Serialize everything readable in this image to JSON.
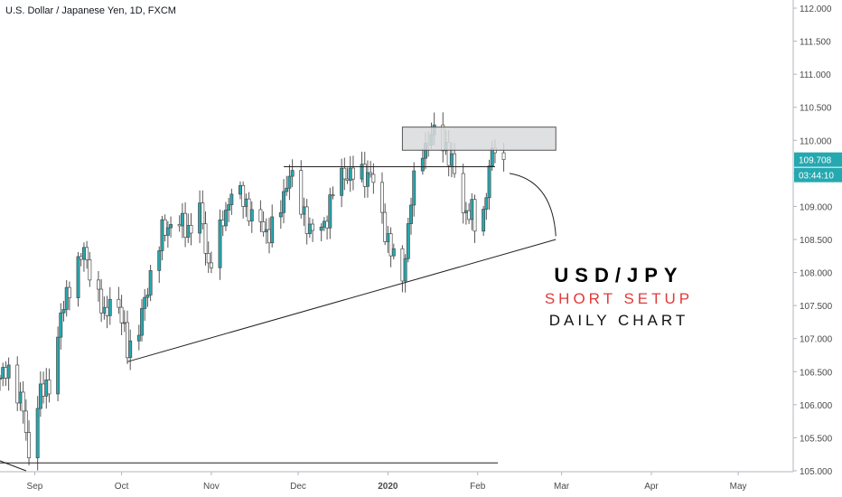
{
  "chart_title": "U.S. Dollar / Japanese Yen, 1D, FXCM",
  "overlay": {
    "pair": "USD/JPY",
    "setup": "SHORT SETUP",
    "timeframe": "DAILY CHART"
  },
  "last_price_label": "109.708",
  "countdown_label": "03:44:10",
  "colors": {
    "up": "#26a8b0",
    "down": "#ffffff",
    "wick": "#555555",
    "price_tag": "#26a8b0",
    "zone_fill": "#d9dadd",
    "short_text": "#e03a3a"
  },
  "chart_data": {
    "type": "candlestick",
    "title": "U.S. Dollar / Japanese Yen, 1D, FXCM",
    "y_axis": {
      "min": 105.0,
      "max": 112.0,
      "ticks": [
        "112.000",
        "111.500",
        "111.000",
        "110.500",
        "110.000",
        "109.500",
        "109.000",
        "108.500",
        "108.000",
        "107.500",
        "107.000",
        "106.500",
        "106.000",
        "105.500",
        "105.000"
      ]
    },
    "x_axis": {
      "start": "2019-08-20",
      "end": "2020-05-20",
      "ticks": [
        {
          "label": "Sep",
          "date": "2019-09-01"
        },
        {
          "label": "Oct",
          "date": "2019-10-01"
        },
        {
          "label": "Nov",
          "date": "2019-11-01"
        },
        {
          "label": "Dec",
          "date": "2019-12-01"
        },
        {
          "label": "2020",
          "date": "2020-01-01"
        },
        {
          "label": "Feb",
          "date": "2020-02-01"
        },
        {
          "label": "Mar",
          "date": "2020-03-01"
        },
        {
          "label": "Apr",
          "date": "2020-04-01"
        },
        {
          "label": "May",
          "date": "2020-05-01"
        }
      ]
    },
    "last_price": 109.708,
    "control_points": [
      [
        "2019-08-20",
        106.4
      ],
      [
        "2019-08-24",
        106.55
      ],
      [
        "2019-08-28",
        105.9
      ],
      [
        "2019-08-30",
        105.2
      ],
      [
        "2019-09-02",
        106.1
      ],
      [
        "2019-09-06",
        106.3
      ],
      [
        "2019-09-10",
        107.3
      ],
      [
        "2019-09-14",
        108.0
      ],
      [
        "2019-09-18",
        108.3
      ],
      [
        "2019-09-22",
        107.8
      ],
      [
        "2019-09-25",
        107.3
      ],
      [
        "2019-09-28",
        107.8
      ],
      [
        "2019-10-03",
        106.9
      ],
      [
        "2019-10-06",
        106.9
      ],
      [
        "2019-10-10",
        107.8
      ],
      [
        "2019-10-15",
        108.6
      ],
      [
        "2019-10-19",
        108.8
      ],
      [
        "2019-10-24",
        108.65
      ],
      [
        "2019-10-28",
        108.95
      ],
      [
        "2019-10-31",
        108.1
      ],
      [
        "2019-11-04",
        108.6
      ],
      [
        "2019-11-08",
        109.25
      ],
      [
        "2019-11-12",
        109.1
      ],
      [
        "2019-11-16",
        108.8
      ],
      [
        "2019-11-20",
        108.6
      ],
      [
        "2019-11-24",
        108.75
      ],
      [
        "2019-11-28",
        109.55
      ],
      [
        "2019-12-02",
        108.95
      ],
      [
        "2019-12-06",
        108.6
      ],
      [
        "2019-12-10",
        108.7
      ],
      [
        "2019-12-14",
        109.4
      ],
      [
        "2019-12-18",
        109.5
      ],
      [
        "2019-12-22",
        109.45
      ],
      [
        "2019-12-26",
        109.5
      ],
      [
        "2019-12-30",
        108.8
      ],
      [
        "2020-01-03",
        108.2
      ],
      [
        "2020-01-06",
        107.9
      ],
      [
        "2020-01-09",
        109.1
      ],
      [
        "2020-01-12",
        109.8
      ],
      [
        "2020-01-15",
        110.0
      ],
      [
        "2020-01-18",
        110.15
      ],
      [
        "2020-01-21",
        109.9
      ],
      [
        "2020-01-24",
        109.5
      ],
      [
        "2020-01-27",
        108.95
      ],
      [
        "2020-01-30",
        108.9
      ],
      [
        "2020-02-01",
        108.55
      ],
      [
        "2020-02-03",
        108.9
      ],
      [
        "2020-02-05",
        109.6
      ],
      [
        "2020-02-07",
        109.9
      ],
      [
        "2020-02-09",
        109.7
      ],
      [
        "2020-02-10",
        109.708
      ]
    ],
    "support_line": {
      "from": [
        "2019-10-03",
        106.65
      ],
      "to": [
        "2020-02-28",
        108.5
      ]
    },
    "horizontal_line": {
      "from": [
        "2019-11-26",
        109.6
      ],
      "to": [
        "2020-02-07",
        109.6
      ]
    },
    "bottom_line": {
      "from": [
        "2019-08-20",
        105.12
      ],
      "to": [
        "2020-02-08",
        105.12
      ]
    },
    "bottom_diagonal": {
      "from": [
        "2019-08-20",
        105.15
      ],
      "to": [
        "2019-08-29",
        105.0
      ]
    },
    "supply_zone": {
      "from": "2020-01-06",
      "to": "2020-02-28",
      "top": 110.2,
      "bottom": 109.85
    },
    "projection_curve": {
      "from": [
        "2020-02-12",
        109.5
      ],
      "to": [
        "2020-02-28",
        108.55
      ]
    }
  }
}
